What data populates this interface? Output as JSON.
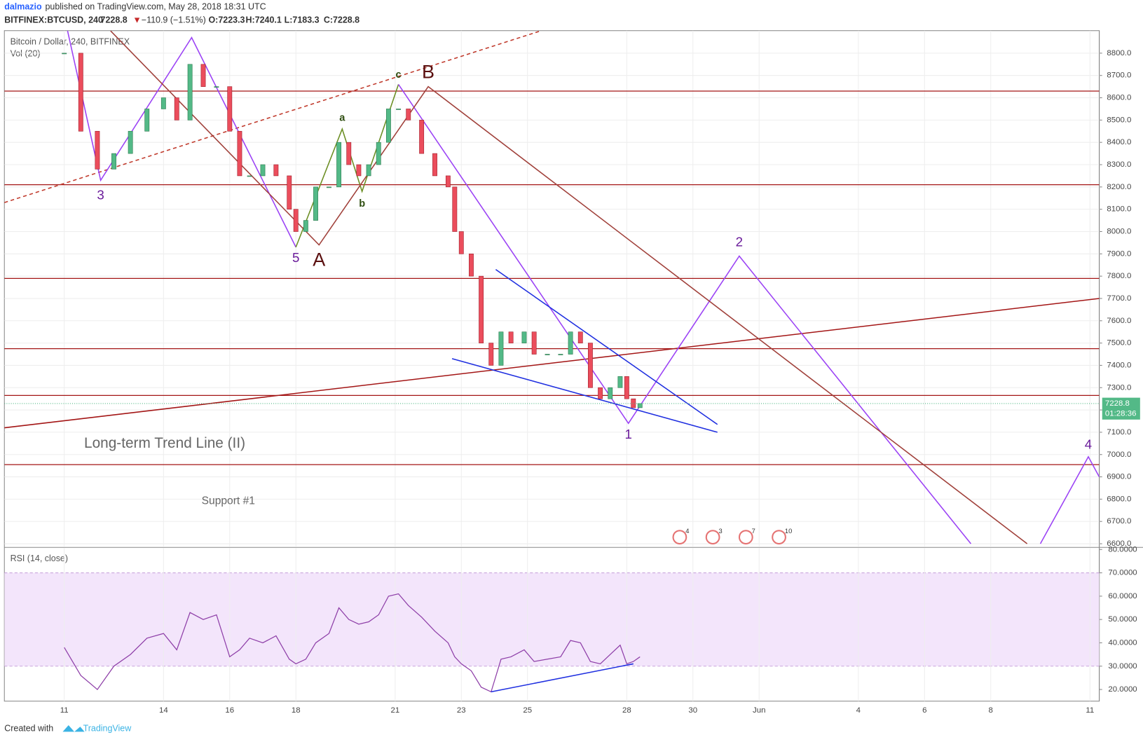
{
  "header": {
    "author": "dalmazio",
    "published": "published on TradingView.com, May 28, 2018 18:31 UTC",
    "symbol": "BITFINEX:BTCUSD, 240",
    "last": "7228.8",
    "arrow": "▼",
    "change": "−110.9 (−1.51%)",
    "open": "O:7223.3",
    "high": "H:7240.1",
    "low": "L:7183.3",
    "close": "C:7228.8"
  },
  "footer": {
    "created": "Created with",
    "brand": "TradingView"
  },
  "chart_data": {
    "type": "candlestick",
    "title": "Bitcoin / Dollar, 240, BITFINEX",
    "volume_title": "Vol (20)",
    "countdown": "01:28:36",
    "x": [
      11.0,
      11.5,
      12.0,
      12.5,
      13.0,
      13.5,
      14.0,
      14.4,
      14.8,
      15.2,
      15.6,
      16.0,
      16.3,
      16.6,
      17.0,
      17.4,
      17.8,
      18.0,
      18.3,
      18.6,
      19.0,
      19.3,
      19.6,
      19.9,
      20.2,
      20.5,
      20.8,
      21.1,
      21.4,
      21.8,
      22.2,
      22.6,
      22.8,
      23.0,
      23.3,
      23.6,
      23.9,
      24.2,
      24.5,
      24.9,
      25.2,
      25.6,
      26.0,
      26.3,
      26.6,
      26.9,
      27.2,
      27.5,
      27.8,
      28.0,
      28.2,
      28.4
    ],
    "close": [
      8800,
      8450,
      8280,
      8350,
      8450,
      8550,
      8600,
      8500,
      8750,
      8650,
      8650,
      8450,
      8250,
      8250,
      8300,
      8250,
      8100,
      8000,
      8050,
      8200,
      8200,
      8400,
      8300,
      8250,
      8300,
      8400,
      8550,
      8550,
      8500,
      8350,
      8250,
      8200,
      8000,
      7900,
      7800,
      7500,
      7400,
      7550,
      7500,
      7550,
      7450,
      7450,
      7450,
      7550,
      7500,
      7300,
      7250,
      7300,
      7350,
      7250,
      7210,
      7228.8
    ],
    "up_color": "#53b987",
    "down_color": "#eb4d5c",
    "xlim": [
      9.19,
      42.28
    ],
    "xticks": [
      11,
      14,
      16,
      18,
      21,
      23,
      25,
      28,
      30,
      {
        "value": 32,
        "label": "Jun"
      },
      {
        "value": 35,
        "label": "4"
      },
      {
        "value": 37,
        "label": "6"
      },
      {
        "value": 39,
        "label": "8"
      },
      {
        "value": 42,
        "label": "11"
      }
    ],
    "ylim": [
      6587,
      8901
    ],
    "yticks": [
      {
        "value": 6600,
        "label": "6600.0"
      },
      {
        "value": 6700,
        "label": "6700.0"
      },
      {
        "value": 6800,
        "label": "6800.0"
      },
      {
        "value": 6900,
        "label": "6900.0"
      },
      {
        "value": 7000,
        "label": "7000.0"
      },
      {
        "value": 7100,
        "label": "7100.0"
      },
      {
        "value": 7200,
        "label": "7200.0"
      },
      {
        "value": 7300,
        "label": "7300.0"
      },
      {
        "value": 7400,
        "label": "7400.0"
      },
      {
        "value": 7500,
        "label": "7500.0"
      },
      {
        "value": 7600,
        "label": "7600.0"
      },
      {
        "value": 7700,
        "label": "7700.0"
      },
      {
        "value": 7800,
        "label": "7800.0"
      },
      {
        "value": 7900,
        "label": "7900.0"
      },
      {
        "value": 8000,
        "label": "8000.0"
      },
      {
        "value": 8100,
        "label": "8100.0"
      },
      {
        "value": 8200,
        "label": "8200.0"
      },
      {
        "value": 8300,
        "label": "8300.0"
      },
      {
        "value": 8400,
        "label": "8400.0"
      },
      {
        "value": 8500,
        "label": "8500.0"
      },
      {
        "value": 8600,
        "label": "8600.0"
      },
      {
        "value": 8700,
        "label": "8700.0"
      },
      {
        "value": 8800,
        "label": "8800.0"
      }
    ],
    "grid": true,
    "levels": [
      8630,
      8210,
      7790,
      7475,
      7265,
      6955
    ],
    "level_color": "#a31515",
    "drawings": [
      {
        "color": "#a31515",
        "x": [
          9.19,
          42.28
        ],
        "y": [
          7120,
          7700
        ]
      },
      {
        "color": "#c0392b",
        "dashed": true,
        "x": [
          9.19,
          25.4
        ],
        "y": [
          8130,
          8900
        ]
      },
      {
        "color": "#9b42f5",
        "x": [
          11.1,
          12.1,
          14.85,
          18.0
        ],
        "y": [
          8900,
          8230,
          8870,
          7930
        ]
      },
      {
        "color": "#6b8e23",
        "x": [
          18.0,
          19.4,
          20.0,
          21.1
        ],
        "y": [
          7930,
          8460,
          8180,
          8660
        ]
      },
      {
        "color": "#9b42f5",
        "x": [
          21.1,
          28.05,
          31.4,
          38.4
        ],
        "y": [
          8660,
          7140,
          7890,
          6600
        ]
      },
      {
        "color": "#9b42f5",
        "x": [
          40.5,
          41.95,
          42.28
        ],
        "y": [
          6600,
          6990,
          6900
        ]
      },
      {
        "color": "#a0403a",
        "x": [
          12.4,
          18.7,
          22.0,
          40.1
        ],
        "y": [
          8900,
          7940,
          8650,
          6600
        ]
      },
      {
        "color": "#1f2fe0",
        "x": [
          24.04,
          30.74
        ],
        "y": [
          7830,
          7135
        ]
      },
      {
        "color": "#1f2fe0",
        "x": [
          22.72,
          30.74
        ],
        "y": [
          7430,
          7100
        ]
      }
    ],
    "annotations": [
      {
        "text": "3",
        "x": 12.1,
        "y": 8160,
        "color": "#6a1b9a"
      },
      {
        "text": "5",
        "x": 18.0,
        "y": 7878,
        "color": "#6a1b9a"
      },
      {
        "text": "A",
        "x": 18.7,
        "y": 7868,
        "color": "#5a0f0f"
      },
      {
        "text": "a",
        "x": 19.4,
        "y": 8509,
        "color": "#2e4d10"
      },
      {
        "text": "b",
        "x": 20.0,
        "y": 8123,
        "color": "#2e4d10"
      },
      {
        "text": "c",
        "x": 21.1,
        "y": 8702,
        "color": "#2e4d10"
      },
      {
        "text": "B",
        "x": 22.0,
        "y": 8710,
        "color": "#5a0f0f"
      },
      {
        "text": "1",
        "x": 28.05,
        "y": 7087,
        "color": "#6a1b9a"
      },
      {
        "text": "2",
        "x": 31.4,
        "y": 7950,
        "color": "#6a1b9a"
      },
      {
        "text": "4",
        "x": 41.95,
        "y": 7041,
        "color": "#6a1b9a"
      }
    ],
    "notes": [
      {
        "text": "Long-term Trend Line (II)",
        "x": 11.6,
        "y": 7048
      },
      {
        "text": "Support #1",
        "x": 15.15,
        "y": 6790
      }
    ],
    "events": [
      {
        "x": 29.6,
        "label": "4"
      },
      {
        "x": 30.6,
        "label": "3"
      },
      {
        "x": 31.6,
        "label": "7"
      },
      {
        "x": 32.6,
        "label": "10"
      }
    ],
    "rsi": {
      "title": "RSI (14, close)",
      "color": "#8e3fa8",
      "band": [
        30,
        70
      ],
      "values": [
        38,
        26,
        20,
        30,
        35,
        42,
        44,
        37,
        53,
        50,
        52,
        34,
        37,
        42,
        40,
        43,
        33,
        31,
        33,
        40,
        44,
        55,
        50,
        48,
        49,
        52,
        60,
        61,
        56,
        51,
        45,
        40,
        34,
        31,
        28,
        21,
        19,
        33,
        34,
        37,
        32,
        33,
        34,
        41,
        40,
        32,
        31,
        35,
        39,
        31,
        32,
        34
      ],
      "ylim": [
        15,
        80.6
      ],
      "yticks": [
        {
          "value": 20,
          "label": "20.0000"
        },
        {
          "value": 30,
          "label": "30.0000"
        },
        {
          "value": 40,
          "label": "40.0000"
        },
        {
          "value": 50,
          "label": "50.0000"
        },
        {
          "value": 60,
          "label": "60.0000"
        },
        {
          "value": 70,
          "label": "70.0000"
        },
        {
          "value": 80,
          "label": "80.0000"
        }
      ],
      "divergence": {
        "color": "#1f2fe0",
        "x": [
          23.9,
          28.2
        ],
        "y": [
          19,
          31
        ]
      }
    }
  }
}
